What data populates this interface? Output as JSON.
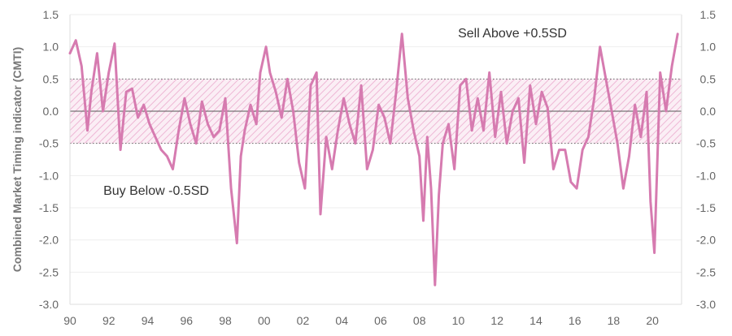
{
  "chart_data": {
    "type": "line",
    "title": "",
    "ylabel": "Combined Market Timing indicator (CMTI)",
    "xlabel": "",
    "xlim": [
      1990,
      2021.5
    ],
    "ylim": [
      -3.0,
      1.5
    ],
    "grid": true,
    "x_ticks": [
      "90",
      "92",
      "94",
      "96",
      "98",
      "00",
      "02",
      "04",
      "06",
      "08",
      "10",
      "12",
      "14",
      "16",
      "18",
      "20"
    ],
    "y_ticks": [
      "1.5",
      "1.0",
      "0.5",
      "0.0",
      "-0.5",
      "-1.0",
      "-1.5",
      "-2.0",
      "-2.5",
      "-3.0"
    ],
    "bands": {
      "upper": 0.5,
      "lower": -0.5
    },
    "annotations": {
      "sell": "Sell Above +0.5SD",
      "buy": "Buy Below -0.5SD"
    },
    "series": [
      {
        "color": "#d67bb0",
        "x": [
          1990.0,
          1990.3,
          1990.6,
          1990.9,
          1991.1,
          1991.4,
          1991.7,
          1992.0,
          1992.3,
          1992.6,
          1992.9,
          1993.2,
          1993.5,
          1993.8,
          1994.1,
          1994.4,
          1994.7,
          1995.0,
          1995.3,
          1995.6,
          1995.9,
          1996.2,
          1996.5,
          1996.8,
          1997.1,
          1997.4,
          1997.7,
          1998.0,
          1998.3,
          1998.6,
          1998.8,
          1999.0,
          1999.3,
          1999.6,
          1999.8,
          2000.1,
          2000.3,
          2000.6,
          2000.9,
          2001.2,
          2001.5,
          2001.8,
          2002.1,
          2002.4,
          2002.7,
          2002.9,
          2003.2,
          2003.5,
          2003.8,
          2004.1,
          2004.4,
          2004.7,
          2005.0,
          2005.3,
          2005.6,
          2005.9,
          2006.2,
          2006.5,
          2006.8,
          2007.1,
          2007.4,
          2007.7,
          2008.0,
          2008.2,
          2008.4,
          2008.6,
          2008.8,
          2009.0,
          2009.2,
          2009.5,
          2009.8,
          2010.1,
          2010.4,
          2010.7,
          2011.0,
          2011.3,
          2011.6,
          2011.9,
          2012.2,
          2012.5,
          2012.8,
          2013.1,
          2013.4,
          2013.7,
          2014.0,
          2014.3,
          2014.6,
          2014.9,
          2015.2,
          2015.5,
          2015.8,
          2016.1,
          2016.4,
          2016.7,
          2017.0,
          2017.3,
          2017.6,
          2017.9,
          2018.2,
          2018.5,
          2018.8,
          2019.1,
          2019.4,
          2019.7,
          2019.9,
          2020.1,
          2020.4,
          2020.7,
          2021.0,
          2021.3
        ],
        "values": [
          0.9,
          1.1,
          0.7,
          -0.3,
          0.3,
          0.9,
          0.0,
          0.6,
          1.05,
          -0.6,
          0.3,
          0.35,
          -0.1,
          0.1,
          -0.2,
          -0.4,
          -0.6,
          -0.7,
          -0.9,
          -0.3,
          0.2,
          -0.2,
          -0.5,
          0.15,
          -0.2,
          -0.4,
          -0.3,
          0.2,
          -1.2,
          -2.05,
          -0.7,
          -0.3,
          0.1,
          -0.2,
          0.6,
          1.0,
          0.6,
          0.3,
          -0.1,
          0.5,
          0.0,
          -0.8,
          -1.2,
          0.4,
          0.6,
          -1.6,
          -0.4,
          -0.9,
          -0.3,
          0.2,
          -0.2,
          -0.5,
          0.4,
          -0.9,
          -0.6,
          0.1,
          -0.1,
          -0.5,
          0.3,
          1.2,
          0.2,
          -0.3,
          -0.7,
          -1.7,
          -0.4,
          -1.2,
          -2.7,
          -1.3,
          -0.5,
          -0.2,
          -0.9,
          0.4,
          0.5,
          -0.3,
          0.2,
          -0.3,
          0.6,
          -0.4,
          0.3,
          -0.5,
          0.0,
          0.2,
          -0.8,
          0.4,
          -0.2,
          0.3,
          0.05,
          -0.9,
          -0.6,
          -0.6,
          -1.1,
          -1.2,
          -0.6,
          -0.4,
          0.2,
          1.0,
          0.5,
          0.0,
          -0.5,
          -1.2,
          -0.7,
          0.1,
          -0.4,
          0.3,
          -1.4,
          -2.2,
          0.6,
          0.0,
          0.7,
          1.2
        ]
      }
    ]
  }
}
